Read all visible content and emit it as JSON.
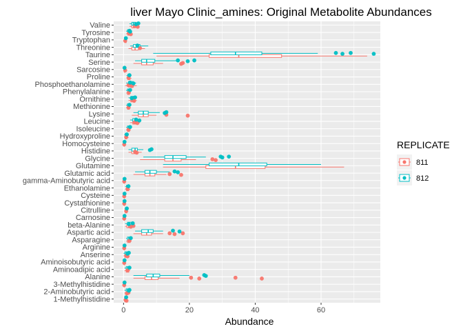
{
  "chart_data": {
    "type": "boxplot",
    "orientation": "horizontal",
    "title": "liver Mayo Clinic_amines: Original Metabolite Abundances",
    "xlabel": "Abundance",
    "ylabel": "",
    "xlim": [
      -3,
      78
    ],
    "xticks": [
      0,
      20,
      40,
      60
    ],
    "grid": true,
    "legend": {
      "title": "REPLICATE",
      "position": "right",
      "entries": [
        {
          "name": "811",
          "color": "#F8766D"
        },
        {
          "name": "812",
          "color": "#00BFC4"
        }
      ]
    },
    "categories": [
      "Valine",
      "Tyrosine",
      "Tryptophan",
      "Threonine",
      "Taurine",
      "Serine",
      "Sarcosine",
      "Proline",
      "Phosphoethanolamine",
      "Phenylalanine",
      "Ornithine",
      "Methionine",
      "Lysine",
      "Leucine",
      "Isoleucine",
      "Hydroxyproline",
      "Homocysteine",
      "Histidine",
      "Glycine",
      "Glutamine",
      "Glutamic acid",
      "gamma-Aminobutyric acid",
      "Ethanolamine",
      "Cysteine",
      "Cystathionine",
      "Citrulline",
      "Carnosine",
      "beta-Alanine",
      "Aspartic acid",
      "Asparagine",
      "Arginine",
      "Anserine",
      "Aminoisobutyric acid",
      "Aminoadipic acid",
      "Alanine",
      "3-Methylhistidine",
      "2-Aminobutyric acid",
      "1-Methylhistidine"
    ],
    "series": [
      {
        "name": "811",
        "color": "#F8766D",
        "boxes": [
          [
            1.8,
            2.5,
            3,
            3.5,
            4.3
          ],
          [
            0.8,
            1.3,
            1.6,
            2,
            2.4
          ],
          [
            0.2,
            0.4,
            0.6,
            0.8,
            1
          ],
          [
            1.5,
            2.5,
            3.5,
            4.5,
            6.5
          ],
          [
            10,
            26,
            35,
            48,
            74
          ],
          [
            3,
            5.5,
            7,
            9,
            12
          ],
          [
            0,
            0.2,
            0.3,
            0.5,
            0.7
          ],
          [
            1,
            1.3,
            1.6,
            2,
            2.4
          ],
          [
            0.5,
            1.5,
            2.2,
            3,
            4
          ],
          [
            0.8,
            1.2,
            1.5,
            1.8,
            2.2
          ],
          [
            1.5,
            2.2,
            2.8,
            3.3,
            4
          ],
          [
            0.8,
            1.2,
            1.5,
            1.8,
            2.2
          ],
          [
            2.5,
            4.5,
            6,
            7.5,
            10
          ],
          [
            2,
            2.8,
            3.5,
            4,
            5
          ],
          [
            0.8,
            1.2,
            1.5,
            1.8,
            2.2
          ],
          [
            0.2,
            0.5,
            0.8,
            1,
            1.5
          ],
          [
            0,
            0.1,
            0.2,
            0.3,
            0.5
          ],
          [
            1.5,
            2.5,
            3.2,
            4,
            5.5
          ],
          [
            5,
            12.5,
            15,
            17.5,
            22
          ],
          [
            12,
            25,
            34,
            43,
            67
          ],
          [
            3,
            6.5,
            8,
            9.5,
            13
          ],
          [
            0,
            0.1,
            0.2,
            0.3,
            0.5
          ],
          [
            0.5,
            0.9,
            1.2,
            1.6,
            2
          ],
          [
            0,
            0.1,
            0.2,
            0.3,
            0.5
          ],
          [
            0,
            0.1,
            0.2,
            0.3,
            0.5
          ],
          [
            0.3,
            0.6,
            0.8,
            1,
            1.3
          ],
          [
            0,
            0.1,
            0.2,
            0.3,
            0.4
          ],
          [
            0.5,
            1,
            1.5,
            2,
            2.5
          ],
          [
            3,
            5.5,
            7,
            8.5,
            12
          ],
          [
            0.8,
            1.2,
            1.6,
            2,
            2.4
          ],
          [
            0,
            0.1,
            0.2,
            0.3,
            0.5
          ],
          [
            0,
            0.4,
            0.8,
            1.2,
            1.8
          ],
          [
            0,
            0.1,
            0.2,
            0.3,
            0.5
          ],
          [
            0.3,
            0.8,
            1.2,
            1.6,
            2
          ],
          [
            3,
            6.5,
            8.5,
            10.5,
            17
          ],
          [
            0,
            0.1,
            0.2,
            0.3,
            0.5
          ],
          [
            0.3,
            0.8,
            1.2,
            1.6,
            2
          ],
          [
            0.2,
            0.4,
            0.6,
            0.8,
            1
          ]
        ],
        "points": [
          [
            4,
            4.3,
            3.6
          ],
          [
            1.6,
            2.2
          ],
          [
            0.5
          ],
          [
            5
          ],
          [],
          [
            18,
            17.5
          ],
          [
            0.5
          ],
          [
            1.5
          ],
          [
            1.5,
            2.5
          ],
          [
            1.6
          ],
          [
            2.8,
            3.2
          ],
          [
            1.5
          ],
          [
            13,
            19.5
          ],
          [
            3.4,
            4.2
          ],
          [
            1.5
          ],
          [
            0.8
          ],
          [
            0.2
          ],
          [
            3.5,
            4
          ],
          [
            27,
            28
          ],
          [],
          [
            14,
            17.5
          ],
          [
            0.2
          ],
          [
            1.2
          ],
          [
            0.2
          ],
          [
            0.2
          ],
          [
            0.8
          ],
          [
            0.2
          ],
          [
            3,
            2.2
          ],
          [
            14,
            15.5,
            18
          ],
          [
            1.8
          ],
          [
            0.2
          ],
          [
            0.8,
            1.2
          ],
          [
            0.2
          ],
          [
            1.2
          ],
          [
            20.5,
            23,
            34,
            42
          ],
          [
            0.2
          ],
          [
            1.5,
            1
          ],
          [
            0.6,
            0.9
          ]
        ]
      },
      {
        "name": "812",
        "color": "#00BFC4",
        "boxes": [
          [
            1.8,
            2.5,
            3,
            3.6,
            4.5
          ],
          [
            0.8,
            1.2,
            1.5,
            1.9,
            2.3
          ],
          [
            0.2,
            0.4,
            0.6,
            0.8,
            1
          ],
          [
            2,
            3,
            4,
            5,
            7.5
          ],
          [
            9,
            26.5,
            34,
            42,
            59
          ],
          [
            3.5,
            5.5,
            7,
            9.5,
            16
          ],
          [
            0,
            0.2,
            0.3,
            0.5,
            0.7
          ],
          [
            0.9,
            1.3,
            1.6,
            2,
            2.4
          ],
          [
            0.8,
            1.5,
            2.2,
            3,
            3.8
          ],
          [
            0.8,
            1.2,
            1.5,
            1.8,
            2.2
          ],
          [
            1.5,
            2.2,
            2.8,
            3.3,
            4
          ],
          [
            0.8,
            1.2,
            1.5,
            1.8,
            2.2
          ],
          [
            3,
            4.5,
            6,
            7.5,
            11
          ],
          [
            2,
            2.8,
            3.5,
            4.2,
            5
          ],
          [
            0.8,
            1.2,
            1.5,
            1.8,
            2.2
          ],
          [
            0.2,
            0.5,
            0.8,
            1,
            1.5
          ],
          [
            0,
            0.1,
            0.2,
            0.3,
            0.5
          ],
          [
            1.5,
            2.5,
            3.5,
            4.2,
            6
          ],
          [
            6,
            12.5,
            15,
            19,
            25
          ],
          [
            12,
            26,
            35,
            43.5,
            60
          ],
          [
            3.5,
            6.5,
            8,
            10,
            14
          ],
          [
            0,
            0.1,
            0.2,
            0.3,
            0.5
          ],
          [
            0.5,
            0.9,
            1.2,
            1.6,
            2
          ],
          [
            0,
            0.1,
            0.2,
            0.3,
            0.5
          ],
          [
            0,
            0.1,
            0.2,
            0.3,
            0.5
          ],
          [
            0.3,
            0.6,
            0.8,
            1,
            1.3
          ],
          [
            0,
            0.1,
            0.2,
            0.3,
            0.4
          ],
          [
            0.5,
            1.2,
            1.8,
            2.4,
            3
          ],
          [
            3.5,
            5.5,
            7.5,
            9,
            12
          ],
          [
            0.8,
            1.2,
            1.6,
            2,
            2.4
          ],
          [
            0,
            0.1,
            0.2,
            0.3,
            0.5
          ],
          [
            0,
            0.4,
            0.8,
            1.2,
            1.8
          ],
          [
            0,
            0.1,
            0.2,
            0.3,
            0.5
          ],
          [
            0.3,
            0.8,
            1.2,
            1.6,
            2
          ],
          [
            3,
            7,
            9,
            11,
            20
          ],
          [
            0,
            0.1,
            0.2,
            0.3,
            0.5
          ],
          [
            0.3,
            0.8,
            1.2,
            1.6,
            2
          ],
          [
            0.2,
            0.4,
            0.6,
            0.8,
            1
          ]
        ],
        "points": [
          [
            4.5,
            3.8
          ],
          [
            1.8,
            2
          ],
          [
            0.7
          ],
          [
            4.2
          ],
          [
            64.5,
            66.5,
            69,
            76
          ],
          [
            16.5,
            19.5,
            21.5
          ],
          [
            0.3
          ],
          [
            1.8
          ],
          [
            2,
            3
          ],
          [
            2
          ],
          [
            3.5,
            2.5
          ],
          [
            1.8
          ],
          [
            13,
            12.5
          ],
          [
            3.8,
            4.8
          ],
          [
            2
          ],
          [
            1
          ],
          [
            0.3
          ],
          [
            8.5,
            8
          ],
          [
            29.5,
            30,
            32
          ],
          [],
          [
            15.5,
            16.5
          ],
          [
            0.3
          ],
          [
            1.5
          ],
          [
            0.3
          ],
          [
            0.3
          ],
          [
            1
          ],
          [
            0.3
          ],
          [
            2.8,
            1.6
          ],
          [
            15,
            17
          ],
          [
            2.2
          ],
          [
            0.3
          ],
          [
            1.6,
            1.2
          ],
          [
            0.3
          ],
          [
            1.8
          ],
          [
            24.5,
            25
          ],
          [
            0.3
          ],
          [
            1.8,
            1.6
          ],
          [
            0.8
          ]
        ]
      }
    ]
  }
}
